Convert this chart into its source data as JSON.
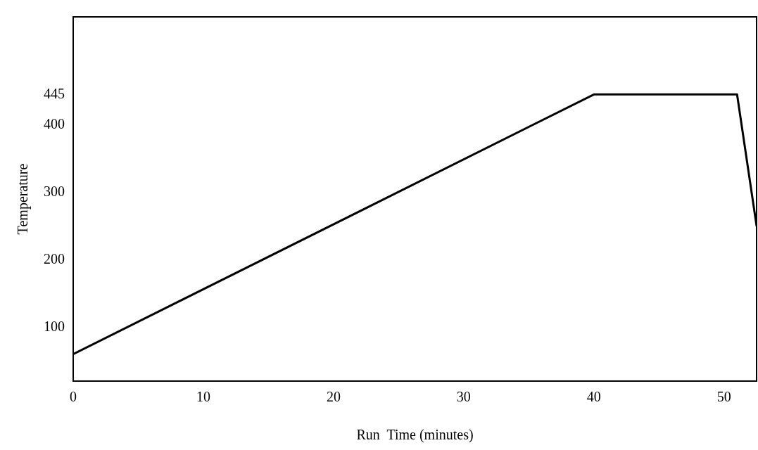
{
  "chart_data": {
    "type": "line",
    "xlabel": "Run  Time (minutes)",
    "ylabel": "Temperature",
    "x": [
      0,
      40,
      51,
      52.5
    ],
    "series": [
      {
        "color": "#000000",
        "values": [
          60,
          445,
          445,
          250
        ]
      }
    ],
    "xlim": [
      0,
      52.5
    ],
    "xticks": [
      0,
      10,
      20,
      30,
      40,
      50
    ],
    "ylim": [
      20,
      560
    ],
    "yticks": [
      100,
      200,
      300,
      400,
      445
    ],
    "grid": false,
    "legend": false,
    "marker": "none",
    "line_style": "solid"
  }
}
